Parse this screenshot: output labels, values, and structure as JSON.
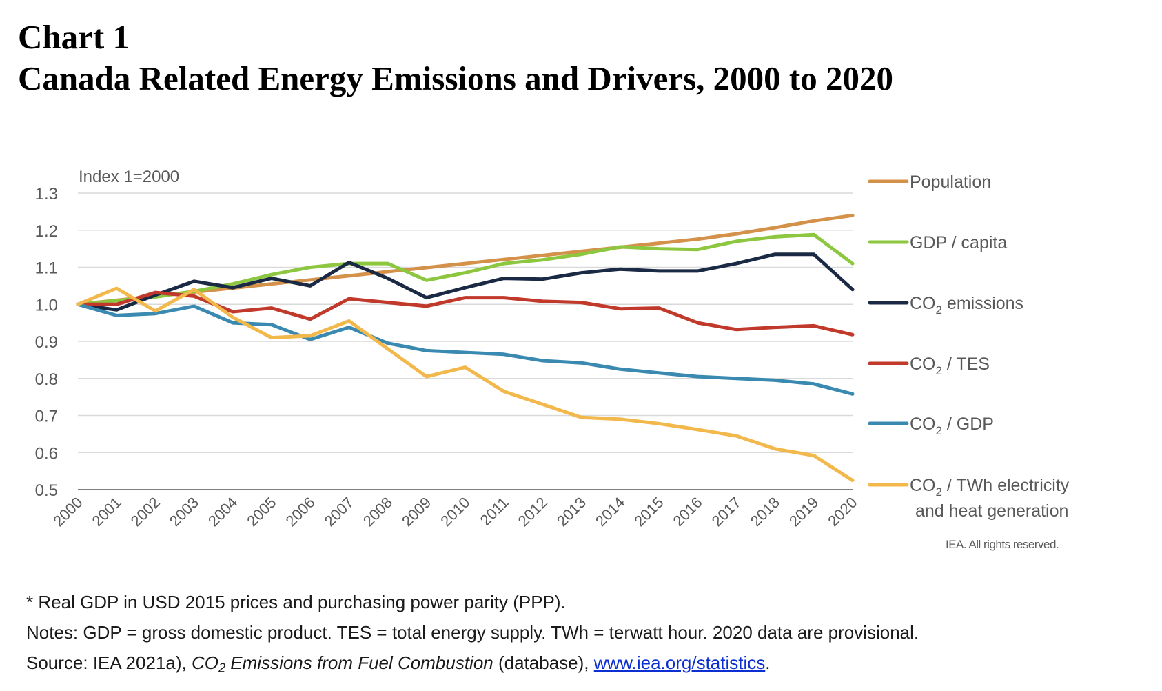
{
  "heading": {
    "line1": "Chart 1",
    "line2": "Canada Related Energy Emissions and Drivers, 2000 to 2020"
  },
  "chart_data": {
    "type": "line",
    "title": "",
    "ylabel": "Index 1=2000",
    "xlabel": "",
    "ylim": [
      0.5,
      1.3
    ],
    "yticks": [
      "1.3",
      "1.2",
      "1.1",
      "1.0",
      "0.9",
      "0.8",
      "0.7",
      "0.6",
      "0.5"
    ],
    "grid": true,
    "legend_position": "right",
    "x": [
      "2000",
      "2001",
      "2002",
      "2003",
      "2004",
      "2005",
      "2006",
      "2007",
      "2008",
      "2009",
      "2010",
      "2011",
      "2012",
      "2013",
      "2014",
      "2015",
      "2016",
      "2017",
      "2018",
      "2019",
      "2020"
    ],
    "series": [
      {
        "name": "Population",
        "color": "#D4914A",
        "values": [
          1.0,
          1.011,
          1.022,
          1.033,
          1.044,
          1.055,
          1.066,
          1.077,
          1.088,
          1.099,
          1.11,
          1.121,
          1.132,
          1.143,
          1.154,
          1.165,
          1.176,
          1.19,
          1.207,
          1.225,
          1.24
        ]
      },
      {
        "name": "GDP / capita",
        "color": "#8DC63F",
        "values": [
          1.0,
          1.01,
          1.02,
          1.035,
          1.055,
          1.08,
          1.1,
          1.11,
          1.11,
          1.065,
          1.085,
          1.11,
          1.12,
          1.135,
          1.155,
          1.15,
          1.148,
          1.17,
          1.182,
          1.188,
          1.11
        ]
      },
      {
        "name": "CO2 emissions",
        "color": "#1B2A44",
        "values": [
          1.0,
          0.985,
          1.025,
          1.062,
          1.045,
          1.07,
          1.05,
          1.113,
          1.07,
          1.018,
          1.045,
          1.07,
          1.068,
          1.085,
          1.095,
          1.09,
          1.09,
          1.11,
          1.135,
          1.135,
          1.04
        ]
      },
      {
        "name": "CO2 / TES",
        "color": "#C0392B",
        "values": [
          1.0,
          1.0,
          1.032,
          1.022,
          0.98,
          0.99,
          0.96,
          1.015,
          1.005,
          0.995,
          1.018,
          1.018,
          1.008,
          1.005,
          0.988,
          0.99,
          0.95,
          0.932,
          0.938,
          0.942,
          0.918
        ]
      },
      {
        "name": "CO2 / GDP",
        "color": "#3A89B0",
        "values": [
          1.0,
          0.97,
          0.975,
          0.995,
          0.95,
          0.945,
          0.905,
          0.938,
          0.895,
          0.875,
          0.87,
          0.865,
          0.848,
          0.842,
          0.825,
          0.815,
          0.805,
          0.8,
          0.795,
          0.785,
          0.758
        ]
      },
      {
        "name": "CO2 / TWh electricity and heat generation",
        "color": "#F2B84B",
        "values": [
          1.0,
          1.043,
          0.982,
          1.04,
          0.965,
          0.91,
          0.915,
          0.955,
          0.88,
          0.805,
          0.83,
          0.765,
          0.73,
          0.695,
          0.69,
          0.678,
          0.662,
          0.645,
          0.61,
          0.592,
          0.525
        ]
      }
    ],
    "legend_labels": [
      {
        "main": "Population"
      },
      {
        "main": "GDP / capita"
      },
      {
        "main": "CO",
        "sub": "2",
        "rest": " emissions"
      },
      {
        "main": "CO",
        "sub": "2",
        "rest": " / TES"
      },
      {
        "main": "CO",
        "sub": "2",
        "rest": " / GDP"
      },
      {
        "main": "CO",
        "sub": "2",
        "rest": " / TWh electricity",
        "line2": "and heat generation"
      }
    ],
    "credit": "IEA. All rights reserved."
  },
  "notes": {
    "footnote": "* Real GDP in USD 2015 prices and purchasing power parity (PPP).",
    "notes_line": "Notes: GDP = gross domestic product. TES = total energy supply. TWh = terwatt hour. 2020 data are provisional.",
    "source_prefix": "Source: IEA 2021a), ",
    "source_italic_main": "CO",
    "source_italic_sub": "2",
    "source_italic_rest": " Emissions from Fuel Combustion",
    "source_middle": " (database), ",
    "source_link": "www.iea.org/statistics",
    "source_end": "."
  }
}
